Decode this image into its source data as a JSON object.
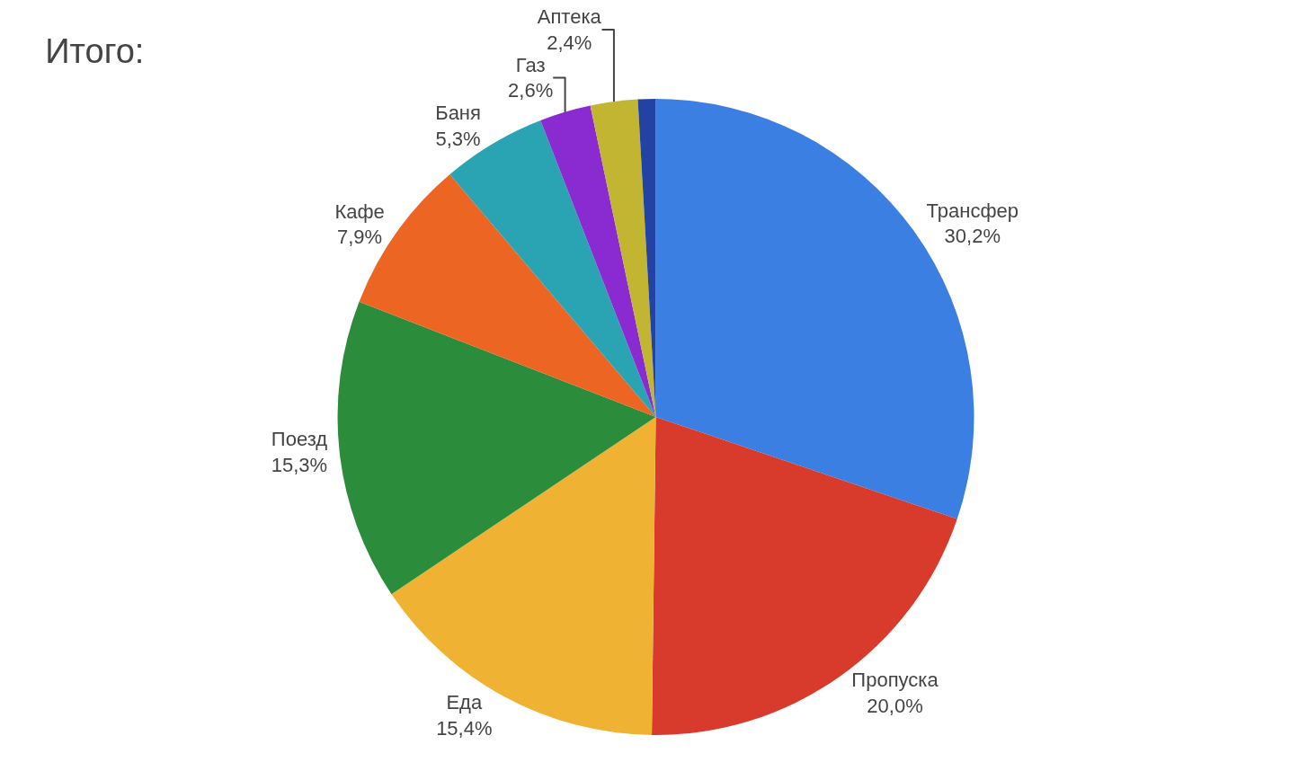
{
  "chart_data": {
    "type": "pie",
    "title": "Итого:",
    "categories": [
      "Трансфер",
      "Пропуска",
      "Еда",
      "Поезд",
      "Кафе",
      "Баня",
      "Газ",
      "Аптека",
      null
    ],
    "values": [
      30.2,
      20.0,
      15.4,
      15.3,
      7.9,
      5.3,
      2.6,
      2.4,
      0.9
    ],
    "value_labels": [
      "30,2%",
      "20,0%",
      "15,4%",
      "15,3%",
      "7,9%",
      "5,3%",
      "2,6%",
      "2,4%",
      null
    ],
    "colors": [
      "#3b7fe3",
      "#d83a2b",
      "#f0b232",
      "#2b8c3b",
      "#ec6522",
      "#2aa3b3",
      "#8a2bd2",
      "#c2b532",
      "#2243a3"
    ],
    "legend": false
  }
}
